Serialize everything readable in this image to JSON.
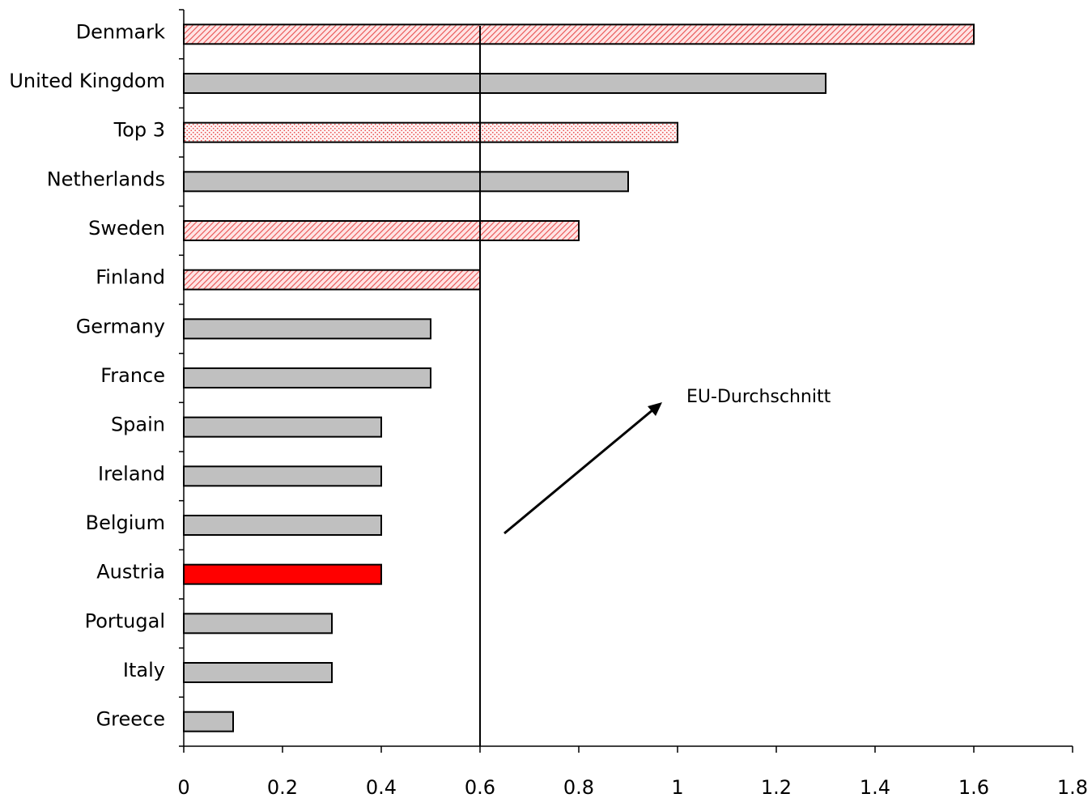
{
  "chart_data": {
    "type": "bar",
    "orientation": "horizontal",
    "categories": [
      "Denmark",
      "United Kingdom",
      "Top 3",
      "Netherlands",
      "Sweden",
      "Finland",
      "Germany",
      "France",
      "Spain",
      "Ireland",
      "Belgium",
      "Austria",
      "Portugal",
      "Italy",
      "Greece"
    ],
    "values": [
      1.6,
      1.3,
      1.0,
      0.9,
      0.8,
      0.6,
      0.5,
      0.5,
      0.4,
      0.4,
      0.4,
      0.4,
      0.3,
      0.3,
      0.1
    ],
    "bar_styles": [
      "red-hatched",
      "gray",
      "red-dotted",
      "gray",
      "red-hatched",
      "red-hatched",
      "gray",
      "gray",
      "gray",
      "gray",
      "gray",
      "red-solid",
      "gray",
      "gray",
      "gray"
    ],
    "xlim": [
      0,
      1.8
    ],
    "xticks": [
      "0",
      "0.2",
      "0.4",
      "0.6",
      "0.8",
      "1",
      "1.2",
      "1.4",
      "1.6",
      "1.8"
    ],
    "title": "",
    "xlabel": "",
    "ylabel": "",
    "grid": false,
    "reference_line": {
      "value": 0.6
    },
    "annotation": {
      "text": "EU-Durchschnitt",
      "arrow": true
    },
    "colors": {
      "gray": "#c0c0c0",
      "red": "#ff0000",
      "hatch_bg": "#ffdede",
      "outline": "#000000"
    }
  }
}
